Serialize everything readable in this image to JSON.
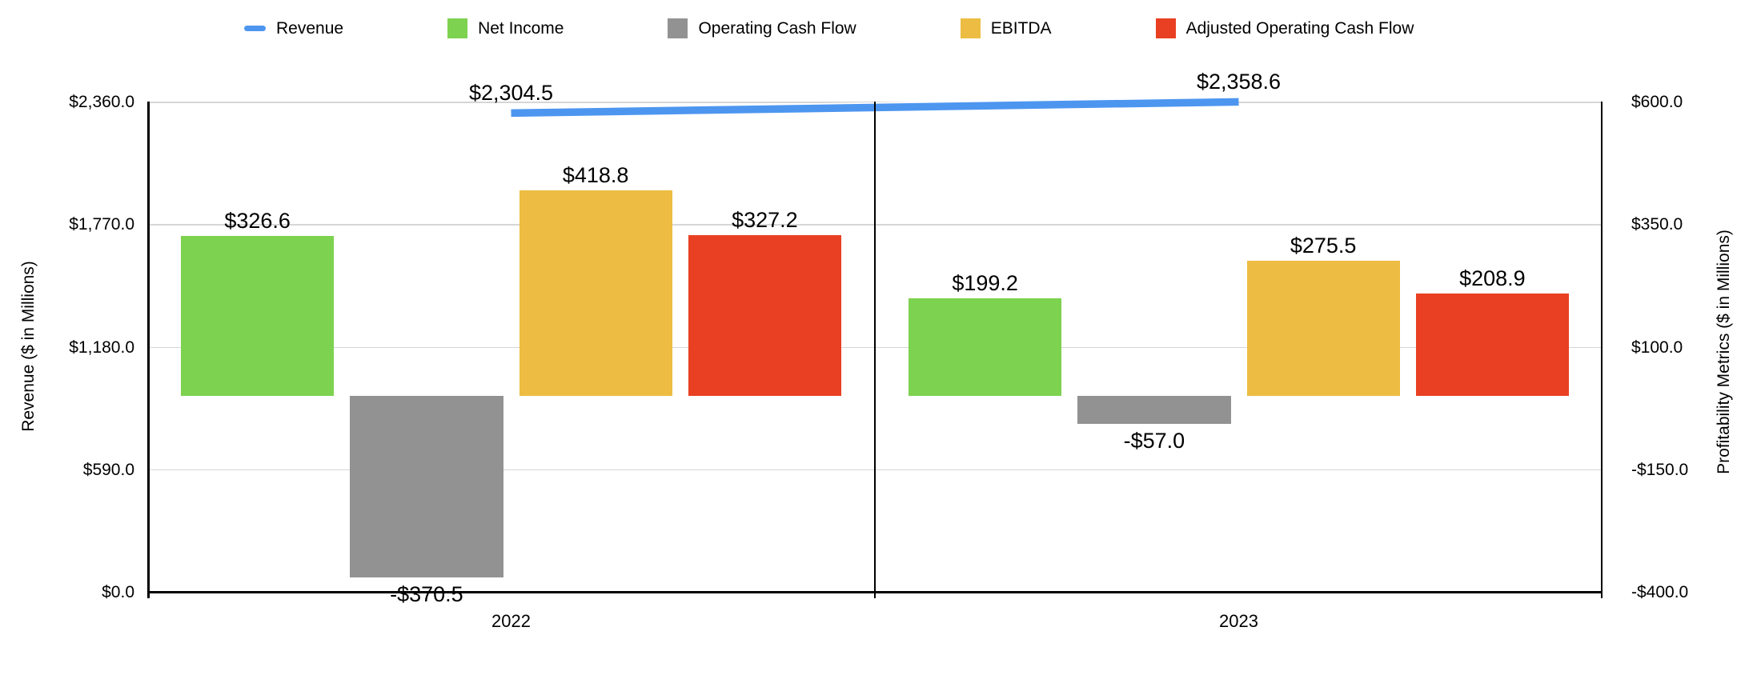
{
  "chart_data": {
    "type": "combo",
    "title": "",
    "categories": [
      "2022",
      "2023"
    ],
    "legend_position": "top",
    "grid": true,
    "left_axis": {
      "title": "Revenue ($ in Millions)",
      "min": 0,
      "max": 2360,
      "tick_labels_top_to_bottom": [
        "$2,360.0",
        "$1,770.0",
        "$1,180.0",
        "$590.0",
        "$0.0"
      ],
      "tick_values_top_to_bottom": [
        2360,
        1770,
        1180,
        590,
        0
      ]
    },
    "right_axis": {
      "title": "Profitability Metrics ($ in Millions)",
      "min": -400,
      "max": 600,
      "tick_labels_top_to_bottom": [
        "$600.0",
        "$350.0",
        "$100.0",
        "-$150.0",
        "-$400.0"
      ],
      "tick_values_top_to_bottom": [
        600,
        350,
        100,
        -150,
        -400
      ]
    },
    "series": [
      {
        "name": "Revenue",
        "type": "line",
        "axis": "left",
        "color": "#4d96f0",
        "values": [
          2304.5,
          2358.6
        ],
        "data_labels": [
          "$2,304.5",
          "$2,358.6"
        ]
      },
      {
        "name": "Net Income",
        "type": "bar",
        "axis": "right",
        "color": "#7dd250",
        "values": [
          326.6,
          199.2
        ],
        "data_labels": [
          "$326.6",
          "$199.2"
        ]
      },
      {
        "name": "Operating Cash Flow",
        "type": "bar",
        "axis": "right",
        "color": "#929292",
        "values": [
          -370.5,
          -57.0
        ],
        "data_labels": [
          "-$370.5",
          "-$57.0"
        ]
      },
      {
        "name": "EBITDA",
        "type": "bar",
        "axis": "right",
        "color": "#ecbd42",
        "values": [
          418.8,
          275.5
        ],
        "data_labels": [
          "$418.8",
          "$275.5"
        ]
      },
      {
        "name": "Adjusted Operating Cash Flow",
        "type": "bar",
        "axis": "right",
        "color": "#e94023",
        "values": [
          327.2,
          208.9
        ],
        "data_labels": [
          "$327.2",
          "$208.9"
        ]
      }
    ]
  }
}
